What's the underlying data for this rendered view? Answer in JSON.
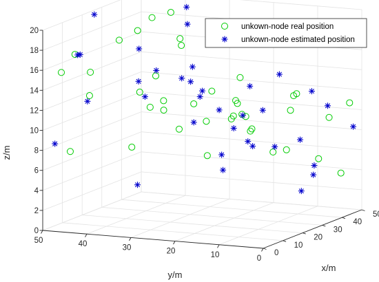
{
  "chart_data": {
    "type": "scatter",
    "title": "",
    "xlabel": "x/m",
    "ylabel": "y/m",
    "zlabel": "z/m",
    "xlim": [
      0,
      50
    ],
    "ylim": [
      0,
      50
    ],
    "zlim": [
      0,
      20
    ],
    "x_ticks": [
      "0",
      "10",
      "20",
      "30",
      "40",
      "50"
    ],
    "y_ticks": [
      "0",
      "10",
      "20",
      "30",
      "40",
      "50"
    ],
    "z_ticks": [
      "0",
      "2",
      "4",
      "6",
      "8",
      "10",
      "12",
      "14",
      "16",
      "18",
      "20"
    ],
    "grid": true,
    "legend_position": "top-right",
    "series": [
      {
        "name": "unkown-node real position",
        "marker": "circle",
        "color": "#00cc00",
        "points": [
          [
            2.7,
            43.9,
            17.6
          ],
          [
            2.5,
            46.9,
            15.7
          ],
          [
            6.8,
            35.7,
            19.0
          ],
          [
            10.1,
            33.0,
            19.8
          ],
          [
            14.5,
            31.7,
            20.8
          ],
          [
            20.7,
            30.2,
            20.9
          ],
          [
            20.2,
            27.9,
            18.4
          ],
          [
            17.3,
            26.3,
            18.0
          ],
          [
            15.0,
            45.9,
            14.8
          ],
          [
            1.6,
            40.1,
            13.7
          ],
          [
            7.6,
            31.4,
            13.9
          ],
          [
            14.6,
            30.9,
            15.0
          ],
          [
            8.4,
            29.4,
            12.4
          ],
          [
            11.2,
            27.6,
            12.9
          ],
          [
            9.7,
            26.9,
            12.1
          ],
          [
            18.0,
            23.8,
            12.2
          ],
          [
            17.1,
            19.3,
            13.7
          ],
          [
            26.3,
            18.0,
            12.1
          ],
          [
            26.5,
            17.7,
            11.8
          ],
          [
            23.4,
            15.7,
            14.7
          ],
          [
            28.3,
            16.6,
            10.4
          ],
          [
            41.1,
            10.8,
            11.9
          ],
          [
            39.8,
            10.9,
            11.8
          ],
          [
            33.5,
            19.8,
            10.1
          ],
          [
            32.1,
            21.1,
            10.0
          ],
          [
            31.6,
            16.7,
            8.9
          ],
          [
            15.3,
            25.9,
            9.8
          ],
          [
            26.9,
            9.8,
            7.2
          ],
          [
            24.8,
            14.0,
            9.3
          ],
          [
            32.6,
            9.3,
            7.0
          ],
          [
            32.4,
            8.3,
            11.0
          ],
          [
            11.9,
            18.0,
            7.7
          ],
          [
            12.3,
            35.3,
            7.9
          ],
          [
            45.6,
            0.8,
            11.0
          ],
          [
            39.9,
            2.9,
            9.9
          ],
          [
            46.8,
            3.3,
            3.8
          ],
          [
            0.1,
            43.8,
            8.1
          ],
          [
            37.7,
            4.3,
            5.9
          ],
          [
            21.2,
            16.7,
            10.7
          ],
          [
            14.3,
            19.3,
            10.9
          ]
        ]
      },
      {
        "name": "unkown-node estimated position",
        "marker": "asterisk",
        "color": "#0000cc",
        "points": [
          [
            9.6,
            42.6,
            21.1
          ],
          [
            22.4,
            27.2,
            19.7
          ],
          [
            21.3,
            26.9,
            21.5
          ],
          [
            23.1,
            22.2,
            19.0
          ],
          [
            28.7,
            14.4,
            23.2
          ],
          [
            16.4,
            35.5,
            17.4
          ],
          [
            18.6,
            26.8,
            14.6
          ],
          [
            20.0,
            25.4,
            14.2
          ],
          [
            15.1,
            31.0,
            15.5
          ],
          [
            21.9,
            23.6,
            13.2
          ],
          [
            32.7,
            10.1,
            17.8
          ],
          [
            4.0,
            43.3,
            17.5
          ],
          [
            3.4,
            43.6,
            17.5
          ],
          [
            24.3,
            26.9,
            15.3
          ],
          [
            3.9,
            41.6,
            12.9
          ],
          [
            12.6,
            33.9,
            14.5
          ],
          [
            17.6,
            22.2,
            13.0
          ],
          [
            26.8,
            15.0,
            13.6
          ],
          [
            34.6,
            11.8,
            14.3
          ],
          [
            36.5,
            5.3,
            12.7
          ],
          [
            20.7,
            25.0,
            10.1
          ],
          [
            23.3,
            20.4,
            11.3
          ],
          [
            28.1,
            17.2,
            10.5
          ],
          [
            32.2,
            14.5,
            10.8
          ],
          [
            45.9,
            5.9,
            10.5
          ],
          [
            31.8,
            20.9,
            8.8
          ],
          [
            8.5,
            30.6,
            13.4
          ],
          [
            30.7,
            17.2,
            7.7
          ],
          [
            27.0,
            21.5,
            6.5
          ],
          [
            28.2,
            15.0,
            7.5
          ],
          [
            38.2,
            8.7,
            7.6
          ],
          [
            32.7,
            12.0,
            7.2
          ],
          [
            45.1,
            8.6,
            4.5
          ],
          [
            27.9,
            21.6,
            4.9
          ],
          [
            46.1,
            0.2,
            8.6
          ],
          [
            7.8,
            32.0,
            4.6
          ],
          [
            1.7,
            48.0,
            8.6
          ],
          [
            35.9,
            7.4,
            2.7
          ],
          [
            39.3,
            6.2,
            4.1
          ]
        ]
      }
    ]
  }
}
